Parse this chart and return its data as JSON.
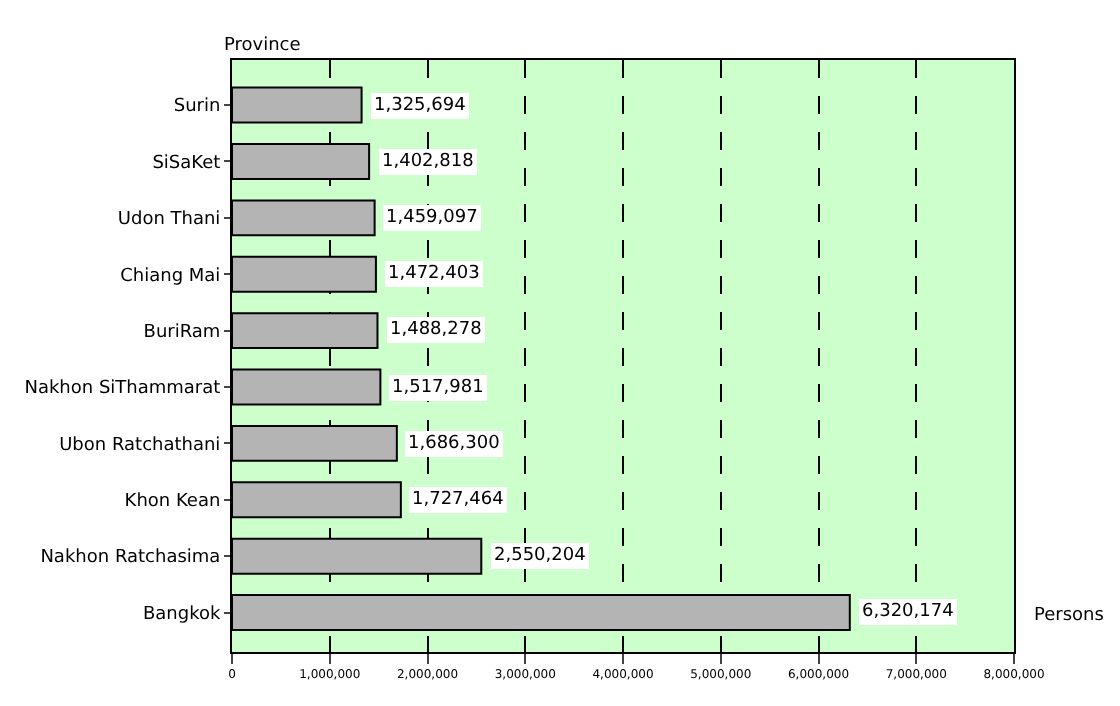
{
  "chart_data": {
    "type": "bar",
    "orientation": "horizontal",
    "xlabel": "Persons",
    "ylabel": "Province",
    "categories": [
      "Surin",
      "SiSaKet",
      "Udon Thani",
      "Chiang Mai",
      "BuriRam",
      "Nakhon SiThammarat",
      "Ubon Ratchathani",
      "Khon Kean",
      "Nakhon Ratchasima",
      "Bangkok"
    ],
    "values": [
      1325694,
      1402818,
      1459097,
      1472403,
      1488278,
      1517981,
      1686300,
      1727464,
      2550204,
      6320174
    ],
    "value_labels": [
      "1,325,694",
      "1,402,818",
      "1,459,097",
      "1,472,403",
      "1,488,278",
      "1,517,981",
      "1,686,300",
      "1,727,464",
      "2,550,204",
      "6,320,174"
    ],
    "color": "#b4b4b4",
    "xlim": [
      0,
      8000000
    ],
    "xticks": [
      {
        "value": 0,
        "label": "0"
      },
      {
        "value": 1000000,
        "label": "1,000,000"
      },
      {
        "value": 2000000,
        "label": "2,000,000"
      },
      {
        "value": 3000000,
        "label": "3,000,000"
      },
      {
        "value": 4000000,
        "label": "4,000,000"
      },
      {
        "value": 5000000,
        "label": "5,000,000"
      },
      {
        "value": 6000000,
        "label": "6,000,000"
      },
      {
        "value": 7000000,
        "label": "7,000,000"
      },
      {
        "value": 8000000,
        "label": "8,000,000"
      }
    ],
    "grid": "x",
    "legend": false
  }
}
